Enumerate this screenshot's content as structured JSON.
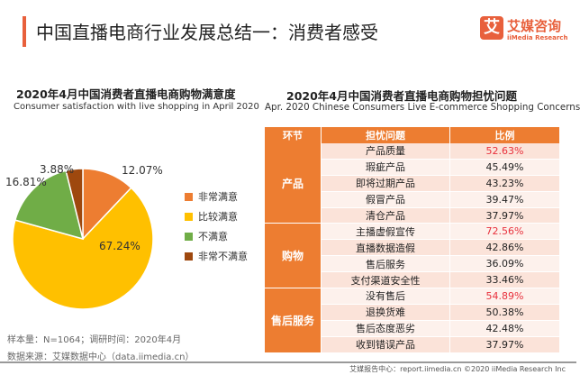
{
  "header": {
    "title": "中国直播电商行业发展总结一：消费者感受",
    "logo_mark": "艾",
    "logo_cn": "艾媒咨询",
    "logo_en": "iiMedia Research"
  },
  "chart_data": [
    {
      "type": "pie",
      "title": "2020年4月中国消费者直播电商购物满意度",
      "subtitle": "Consumer satisfaction with live shopping in April 2020",
      "categories": [
        "非常满意",
        "比较满意",
        "不满意",
        "非常不满意"
      ],
      "values": [
        12.07,
        67.24,
        16.81,
        3.88
      ],
      "labels": [
        "12.07%",
        "67.24%",
        "16.81%",
        "3.88%"
      ],
      "colors": [
        "#ed7d31",
        "#ffc000",
        "#70ad47",
        "#9e480e"
      ],
      "legend": "right"
    },
    {
      "type": "table",
      "title": "2020年4月中国消费者直播电商购物担忧问题",
      "subtitle": "Apr. 2020 Chinese Consumers Live E-commerce Shopping Concerns",
      "columns": [
        "环节",
        "担忧问题",
        "比例"
      ],
      "groups": [
        {
          "name": "产品",
          "rows": [
            [
              "产品质量",
              "52.63%",
              true
            ],
            [
              "瑕疵产品",
              "45.49%",
              false
            ],
            [
              "即将过期产品",
              "43.23%",
              false
            ],
            [
              "假冒产品",
              "39.47%",
              false
            ],
            [
              "清仓产品",
              "37.97%",
              false
            ]
          ]
        },
        {
          "name": "购物",
          "rows": [
            [
              "主播虚假宣传",
              "72.56%",
              true
            ],
            [
              "直播数据造假",
              "42.86%",
              false
            ],
            [
              "售后服务",
              "36.09%",
              false
            ],
            [
              "支付渠道安全性",
              "33.46%",
              false
            ]
          ]
        },
        {
          "name": "售后服务",
          "rows": [
            [
              "没有售后",
              "54.89%",
              true
            ],
            [
              "退换货难",
              "50.38%",
              false
            ],
            [
              "售后态度恶劣",
              "42.48%",
              false
            ],
            [
              "收到错误产品",
              "37.97%",
              false
            ]
          ]
        }
      ],
      "highlight_color": "#e8303c"
    }
  ],
  "footer": {
    "sample": "样本量：N=1064；调研时间：2020年4月",
    "source": "数据来源：艾媒数据中心（data.iimedia.cn）",
    "copyright": "艾媒报告中心：report.iimedia.cn  ©2020  iiMedia Research Inc"
  }
}
